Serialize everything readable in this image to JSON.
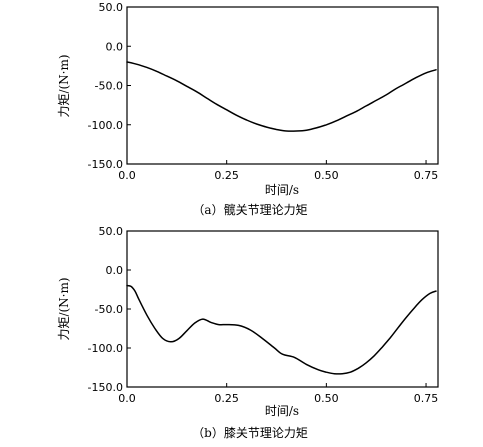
{
  "chart_data": [
    {
      "type": "line",
      "caption": "（a）髋关节理论力矩",
      "xlabel": "时间/s",
      "ylabel": "力矩/(N·m)",
      "xlim": [
        0,
        0.78
      ],
      "ylim": [
        -150,
        50
      ],
      "xticks": [
        0.0,
        0.25,
        0.5,
        0.75
      ],
      "xtick_labels": [
        "0.0",
        "0.25",
        "0.50",
        "0.75"
      ],
      "yticks": [
        50,
        0,
        -50,
        -100,
        -150
      ],
      "ytick_labels": [
        "50.0",
        "0.0",
        "-50.0",
        "-100.0",
        "-150.0"
      ],
      "grid": false,
      "series": [
        {
          "x": [
            0.0,
            0.025,
            0.05,
            0.075,
            0.1,
            0.125,
            0.15,
            0.175,
            0.2,
            0.225,
            0.25,
            0.275,
            0.3,
            0.325,
            0.35,
            0.375,
            0.4,
            0.425,
            0.45,
            0.475,
            0.5,
            0.525,
            0.55,
            0.575,
            0.6,
            0.625,
            0.65,
            0.675,
            0.7,
            0.725,
            0.75,
            0.775
          ],
          "y": [
            -20,
            -23,
            -27,
            -32,
            -38,
            -44,
            -51,
            -58,
            -66,
            -74,
            -81,
            -88,
            -94,
            -99,
            -103,
            -106,
            -108,
            -108,
            -107,
            -104,
            -100,
            -95,
            -89,
            -83,
            -76,
            -69,
            -62,
            -54,
            -47,
            -40,
            -34,
            -30
          ]
        }
      ]
    },
    {
      "type": "line",
      "caption": "（b）膝关节理论力矩",
      "xlabel": "时间/s",
      "ylabel": "力矩/(N·m)",
      "xlim": [
        0,
        0.78
      ],
      "ylim": [
        -150,
        50
      ],
      "xticks": [
        0.0,
        0.25,
        0.5,
        0.75
      ],
      "xtick_labels": [
        "0.0",
        "0.25",
        "0.50",
        "0.75"
      ],
      "yticks": [
        50,
        0,
        -50,
        -100,
        -150
      ],
      "ytick_labels": [
        "50.0",
        "0.0",
        "-50.0",
        "-100.0",
        "-150.0"
      ],
      "grid": false,
      "series": [
        {
          "x": [
            0.0,
            0.01,
            0.02,
            0.03,
            0.05,
            0.07,
            0.09,
            0.11,
            0.13,
            0.15,
            0.17,
            0.19,
            0.21,
            0.23,
            0.25,
            0.28,
            0.31,
            0.34,
            0.37,
            0.39,
            0.42,
            0.45,
            0.48,
            0.5,
            0.52,
            0.54,
            0.56,
            0.58,
            0.6,
            0.62,
            0.64,
            0.66,
            0.68,
            0.7,
            0.72,
            0.74,
            0.76,
            0.775
          ],
          "y": [
            -20,
            -21,
            -27,
            -38,
            -58,
            -75,
            -88,
            -92,
            -88,
            -78,
            -68,
            -63,
            -67,
            -70,
            -70,
            -71,
            -77,
            -88,
            -100,
            -108,
            -112,
            -121,
            -128,
            -131,
            -133,
            -133,
            -131,
            -126,
            -119,
            -110,
            -99,
            -87,
            -74,
            -61,
            -49,
            -38,
            -30,
            -27
          ]
        }
      ]
    }
  ]
}
